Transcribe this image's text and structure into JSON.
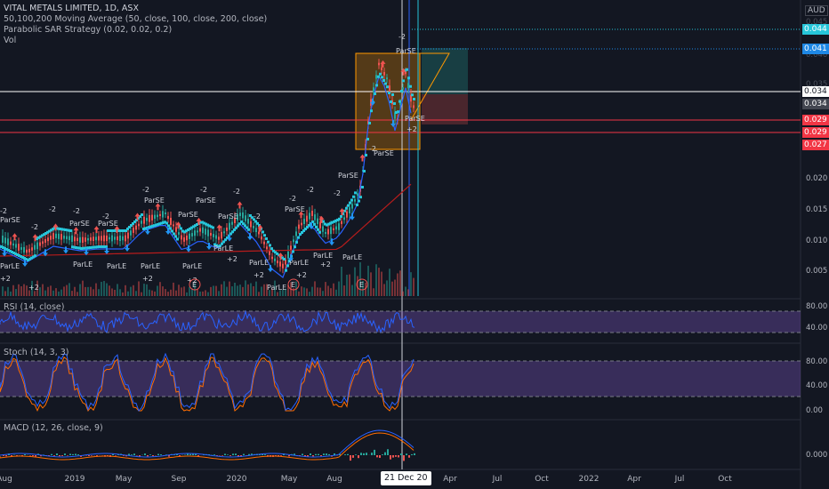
{
  "symbol_title": "VITAL METALS LIMITED, 1D, ASX",
  "indicators": [
    "50,100,200 Moving Average (50, close, 100, close, 200, close)",
    "Parabolic SAR Strategy (0.02, 0.02, 0.2)",
    "Vol"
  ],
  "currency": "AUD",
  "price_axis": {
    "ticks": [
      "0.020",
      "0.015",
      "0.010",
      "0.005"
    ],
    "faint_ticks": [
      "0.045",
      "0.040",
      "0.035"
    ],
    "tags": [
      {
        "text": "0.044",
        "color": "#26c6da"
      },
      {
        "text": "0.041",
        "color": "#1e88e5"
      },
      {
        "text": "0.034",
        "color": "#ffffff",
        "dark": true
      },
      {
        "text": "0.034",
        "color": "#434651"
      },
      {
        "text": "0.029",
        "color": "#f23645"
      },
      {
        "text": "0.029",
        "color": "#f23645"
      },
      {
        "text": "0.027",
        "color": "#f23645"
      }
    ]
  },
  "rsi": {
    "label": "RSI (14, close)",
    "ticks": [
      "80.00",
      "40.00"
    ]
  },
  "stoch": {
    "label": "Stoch (14, 3, 3)",
    "ticks": [
      "80.00",
      "40.00",
      "0.00"
    ]
  },
  "macd": {
    "label": "MACD (12, 26, close, 9)",
    "ticks": [
      "0.000"
    ]
  },
  "x_axis": [
    "Aug",
    "2019",
    "May",
    "Sep",
    "2020",
    "May",
    "Aug",
    "Apr",
    "Jul",
    "Oct",
    "2022",
    "Apr",
    "Jul",
    "Oct"
  ],
  "crosshair_date": "21 Dec 20",
  "annotations": {
    "parse": "ParSE",
    "parle": "ParLE",
    "minus2": "-2",
    "plus2": "+2",
    "earnings": "E"
  },
  "colors": {
    "background": "#131722",
    "sar_dots": "#26c6da",
    "ma50": "#2962ff",
    "ma200": "#b71c1c",
    "rsi_line": "#2962ff",
    "rsi_band": "#7e57c2",
    "stoch_k": "#2962ff",
    "stoch_d": "#ff6d00",
    "up": "#26a69a",
    "down": "#ef5350"
  }
}
